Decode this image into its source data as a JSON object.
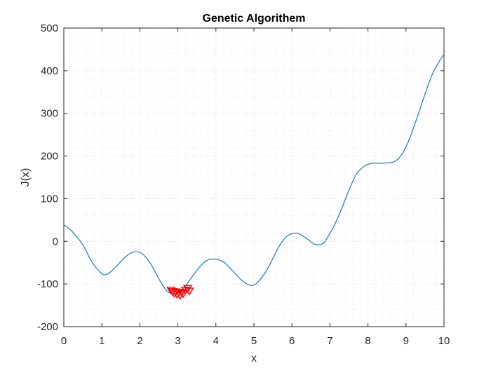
{
  "chart_data": {
    "type": "line",
    "title": "Genetic Algorithem",
    "xlabel": "x",
    "ylabel": "J(x)",
    "xlim": [
      0,
      10
    ],
    "ylim": [
      -200,
      500
    ],
    "xticks": [
      0,
      1,
      2,
      3,
      4,
      5,
      6,
      7,
      8,
      9,
      10
    ],
    "yticks": [
      -200,
      -100,
      0,
      100,
      200,
      300,
      400,
      500
    ],
    "grid": "on (major and minor, dotted)",
    "series": [
      {
        "type": "line",
        "color": "#0072BD",
        "x": [
          0,
          0.1,
          0.25,
          0.5,
          0.75,
          1.0,
          1.1,
          1.2,
          1.4,
          1.6,
          1.8,
          1.95,
          2.1,
          2.3,
          2.5,
          2.7,
          2.85,
          3.0,
          3.1,
          3.2,
          3.4,
          3.6,
          3.8,
          4.0,
          4.15,
          4.3,
          4.5,
          4.7,
          4.9,
          5.0,
          5.1,
          5.3,
          5.5,
          5.7,
          5.9,
          6.1,
          6.2,
          6.4,
          6.6,
          6.8,
          6.9,
          7.1,
          7.3,
          7.5,
          7.7,
          7.9,
          8.1,
          8.3,
          8.5,
          8.7,
          8.9,
          9.1,
          9.3,
          9.5,
          9.7,
          9.9,
          10.0
        ],
        "y": [
          38,
          33,
          20,
          -8,
          -50,
          -76,
          -78,
          -74,
          -57,
          -38,
          -26,
          -25,
          -32,
          -55,
          -88,
          -115,
          -123,
          -122,
          -116,
          -105,
          -80,
          -57,
          -43,
          -42,
          -46,
          -56,
          -75,
          -93,
          -103,
          -102,
          -96,
          -73,
          -40,
          -6,
          14,
          19,
          17,
          6,
          -7,
          -6,
          4,
          35,
          75,
          120,
          158,
          176,
          183,
          183,
          184,
          187,
          205,
          242,
          292,
          345,
          393,
          425,
          438
        ]
      },
      {
        "type": "scatter",
        "marker": "triangle-down",
        "color": "#FF0000",
        "x": [
          2.82,
          2.86,
          2.9,
          2.94,
          2.98,
          3.02,
          3.06,
          3.1,
          3.14,
          3.2,
          3.26,
          3.3
        ],
        "y": [
          -114,
          -117,
          -121,
          -118,
          -124,
          -120,
          -126,
          -119,
          -122,
          -114,
          -110,
          -116
        ]
      }
    ]
  }
}
